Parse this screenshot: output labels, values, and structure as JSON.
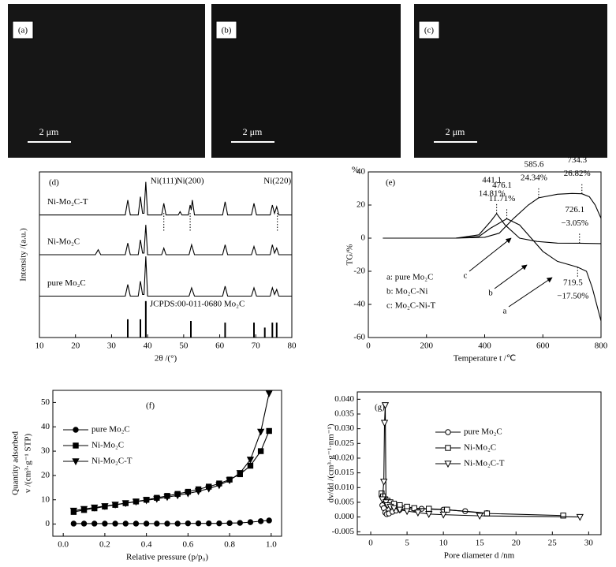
{
  "images": [
    {
      "label": "(a)",
      "scale_bar": "2 μm"
    },
    {
      "label": "(b)",
      "scale_bar": "2 μm"
    },
    {
      "label": "(c)",
      "scale_bar": "2 μm"
    }
  ],
  "chart_data": [
    {
      "type": "line",
      "panel": "(d)",
      "xlabel": "2θ /(°)",
      "ylabel": [
        "Intensity /(a.u.)"
      ],
      "xlim": [
        10,
        80
      ],
      "xticks": [
        10,
        20,
        30,
        40,
        50,
        60,
        70,
        80
      ],
      "ylim": [
        0,
        100
      ],
      "yticks": [],
      "legend": "inline",
      "series": [
        {
          "name": "Ni-Mo₂C-T",
          "color": "#000000",
          "x": [
            10,
            33.8,
            34.5,
            35.2,
            37.4,
            38,
            38.6,
            39,
            39.5,
            40,
            43.9,
            44.5,
            45.1,
            48.5,
            49,
            49.5,
            51.3,
            51.8,
            52.1,
            52.4,
            53,
            60.8,
            61.5,
            62.2,
            68.8,
            69.5,
            70.2,
            74,
            74.6,
            75.2,
            75.8,
            76.4,
            80
          ],
          "values": [
            74,
            74,
            83,
            74,
            74,
            85,
            75,
            75,
            94,
            74,
            74,
            81,
            74,
            74,
            76,
            74,
            74,
            80,
            77,
            83,
            74,
            74,
            82,
            74,
            74,
            81,
            74,
            74,
            80,
            75,
            79,
            74,
            74
          ]
        },
        {
          "name": "Ni-Mo₂C",
          "color": "#000000",
          "x": [
            10,
            25.5,
            26.3,
            27,
            33.8,
            34.5,
            35.2,
            37.4,
            38,
            38.6,
            39,
            39.5,
            40,
            43.9,
            44.5,
            45.1,
            51.5,
            52.2,
            53,
            60.8,
            61.5,
            62.2,
            68.8,
            69.5,
            70.2,
            74,
            74.6,
            75.2,
            75.8,
            76.4,
            80
          ],
          "values": [
            50,
            50,
            53,
            50,
            50,
            57,
            50,
            50,
            59,
            51,
            51,
            68,
            50,
            50,
            54,
            50,
            50,
            56,
            50,
            50,
            56,
            50,
            50,
            55,
            50,
            50,
            56,
            51,
            54,
            50,
            50
          ]
        },
        {
          "name": "pure Mo₂C",
          "color": "#000000",
          "x": [
            10,
            33.8,
            34.5,
            35.2,
            37.4,
            38,
            38.6,
            39,
            39.5,
            40,
            51.5,
            52.2,
            53,
            60.8,
            61.5,
            62.2,
            68.8,
            69.5,
            70.2,
            74,
            74.6,
            75.2,
            75.8,
            76.4,
            80
          ],
          "values": [
            25,
            25,
            32,
            25,
            25,
            34,
            26,
            26,
            49,
            25,
            25,
            30,
            25,
            25,
            31,
            25,
            25,
            30,
            25,
            25,
            30,
            26,
            29,
            25,
            25
          ]
        },
        {
          "name": "JCPDS:00-011-0680 Mo₂C",
          "color": "#000000",
          "style": "stick",
          "x": [
            34.5,
            38,
            39.5,
            52,
            61.5,
            69.5,
            72.5,
            74.6,
            75.8
          ],
          "values": [
            11,
            11,
            22,
            10,
            9,
            9,
            6,
            9,
            9
          ]
        }
      ],
      "annotations": [
        {
          "text": "Ni(111)",
          "x": 44.5
        },
        {
          "text": "Ni(200)",
          "x": 51.8
        },
        {
          "text": "Ni(220)",
          "x": 76
        }
      ]
    },
    {
      "type": "line",
      "panel": "(e)",
      "xlabel": "Temperature    t /℃",
      "ylabel": [
        "TG/%"
      ],
      "y_unit": "%",
      "xlim": [
        0,
        800
      ],
      "xticks": [
        0,
        200,
        400,
        600,
        800
      ],
      "ylim": [
        -60,
        40
      ],
      "yticks": [
        -60,
        -40,
        -20,
        0,
        20,
        40
      ],
      "legend": "text-box",
      "series": [
        {
          "name": "a: pure Mo₂C",
          "tag": "a",
          "color": "#000000",
          "x": [
            50,
            300,
            380,
            420,
            476.1,
            520,
            560,
            600,
            650,
            719.5,
            750,
            770,
            800
          ],
          "values": [
            0,
            0,
            1,
            6,
            11.71,
            8,
            0,
            -8,
            -14,
            -17.5,
            -20,
            -30,
            -50
          ]
        },
        {
          "name": "b: Mo₂C-Ni",
          "tag": "b",
          "color": "#000000",
          "x": [
            50,
            300,
            380,
            420,
            441.1,
            470,
            520,
            580,
            650,
            726.1,
            800
          ],
          "values": [
            0,
            0,
            2,
            10,
            14.81,
            8,
            0,
            -2,
            -3,
            -3.05,
            -3.3
          ]
        },
        {
          "name": "c: Mo₂C-Ni-T",
          "tag": "c",
          "color": "#000000",
          "x": [
            50,
            300,
            400,
            450,
            500,
            550,
            585.6,
            650,
            700,
            734.3,
            760,
            780,
            800
          ],
          "values": [
            0,
            0,
            0.5,
            3,
            12,
            20,
            24.34,
            26.5,
            27,
            26.82,
            25,
            20,
            12
          ]
        }
      ],
      "annotations": [
        {
          "x": 441.1,
          "y": 14.81,
          "y_label": "14.81%",
          "side": "above"
        },
        {
          "x": 476.1,
          "y": 11.71,
          "y_label": "11.71%",
          "side": "above"
        },
        {
          "x": 585.6,
          "y": 24.34,
          "y_label": "24.34%",
          "side": "above"
        },
        {
          "x": 734.3,
          "y": 26.82,
          "y_label": "26.82%",
          "side": "above"
        },
        {
          "x": 726.1,
          "y": -3.05,
          "y_label": "−3.05%",
          "side": "above"
        },
        {
          "x": 719.5,
          "y": -17.5,
          "y_label": "−17.50%",
          "side": "below"
        }
      ]
    },
    {
      "type": "line",
      "panel": "(f)",
      "xlabel": "Relative pressure    (p/p₀)",
      "ylabel": [
        "Quantity adsorbed",
        "v /(cm³·g⁻¹ STP)"
      ],
      "xlim": [
        -0.05,
        1.05
      ],
      "xticks": [
        {
          "value": 0,
          "label": "0.0"
        },
        0.2,
        0.4,
        0.6,
        0.8,
        {
          "value": 1,
          "label": "1.0"
        }
      ],
      "ylim": [
        -5,
        55
      ],
      "yticks": [
        0,
        10,
        20,
        30,
        40,
        50
      ],
      "legend": "center-left",
      "marker_fill": "filled",
      "series": [
        {
          "name": "pure Mo₂C",
          "color": "#000000",
          "marker": "circle",
          "x": [
            0.05,
            0.1,
            0.15,
            0.2,
            0.25,
            0.3,
            0.35,
            0.4,
            0.45,
            0.5,
            0.55,
            0.6,
            0.65,
            0.7,
            0.75,
            0.8,
            0.85,
            0.9,
            0.95,
            0.99
          ],
          "values": [
            0.2,
            0.2,
            0.2,
            0.2,
            0.2,
            0.2,
            0.2,
            0.2,
            0.2,
            0.2,
            0.2,
            0.3,
            0.3,
            0.3,
            0.3,
            0.4,
            0.5,
            0.8,
            1.2,
            1.5
          ]
        },
        {
          "name": "Ni-Mo₂C",
          "color": "#000000",
          "marker": "square",
          "x": [
            0.05,
            0.1,
            0.15,
            0.2,
            0.25,
            0.3,
            0.35,
            0.4,
            0.45,
            0.5,
            0.55,
            0.6,
            0.65,
            0.7,
            0.75,
            0.8,
            0.85,
            0.9,
            0.95,
            0.99
          ],
          "values": [
            5.0,
            5.8,
            6.5,
            7.2,
            7.9,
            8.6,
            9.3,
            10.0,
            10.8,
            11.6,
            12.4,
            13.3,
            14.3,
            15.4,
            16.7,
            18.3,
            20.5,
            24.0,
            30.0,
            38.3
          ]
        },
        {
          "name": "Ni-Mo₂C-T",
          "color": "#000000",
          "marker": "triangle-down",
          "x": [
            0.05,
            0.1,
            0.15,
            0.2,
            0.25,
            0.3,
            0.35,
            0.4,
            0.45,
            0.5,
            0.55,
            0.6,
            0.65,
            0.7,
            0.75,
            0.8,
            0.85,
            0.9,
            0.95,
            0.99
          ],
          "values": [
            5.5,
            6.2,
            6.8,
            7.4,
            8.0,
            8.6,
            9.2,
            9.8,
            10.4,
            11.1,
            11.8,
            12.6,
            13.5,
            14.6,
            16.0,
            18.0,
            21.0,
            26.5,
            38.0,
            53.8
          ]
        }
      ]
    },
    {
      "type": "line",
      "panel": "(g)",
      "xlabel": "Pore diameter    d /nm",
      "ylabel": [
        "dv/dd /(cm³·g⁻¹·nm⁻¹)"
      ],
      "xlim": [
        -1.85,
        31.7
      ],
      "xticks": [
        0,
        5,
        10,
        15,
        20,
        25,
        30
      ],
      "ylim": [
        -0.006,
        0.0425
      ],
      "yticks": [
        -0.005,
        {
          "value": 0,
          "label": "0.000"
        },
        0.005,
        {
          "value": 0.01,
          "label": "0.010"
        },
        0.015,
        {
          "value": 0.02,
          "label": "0.020"
        },
        0.025,
        {
          "value": 0.03,
          "label": "0.030"
        },
        0.035,
        {
          "value": 0.04,
          "label": "0.040"
        }
      ],
      "legend": "center-left",
      "marker_fill": "open",
      "series": [
        {
          "name": "pure Mo₂C",
          "color": "#000000",
          "marker": "circle",
          "x": [
            1.6,
            1.8,
            2.0,
            2.2,
            2.5,
            3,
            3.5,
            4,
            5,
            6,
            7,
            8,
            10,
            13,
            16
          ],
          "values": [
            0.004,
            0.003,
            0.0015,
            0.001,
            0.0012,
            0.0018,
            0.0022,
            0.0025,
            0.0027,
            0.0028,
            0.0028,
            0.0027,
            0.0025,
            0.002,
            0.0013
          ]
        },
        {
          "name": "Ni-Mo₂C",
          "color": "#000000",
          "marker": "square",
          "x": [
            1.5,
            1.7,
            2.0,
            2.3,
            2.7,
            3.2,
            4,
            5,
            6,
            8,
            10.5,
            16,
            26.5
          ],
          "values": [
            0.008,
            0.007,
            0.006,
            0.0055,
            0.005,
            0.0045,
            0.004,
            0.0035,
            0.003,
            0.0028,
            0.0025,
            0.0012,
            0.0005
          ]
        },
        {
          "name": "Ni-Mo₂C-T",
          "color": "#000000",
          "marker": "triangle-down",
          "x": [
            1.6,
            1.8,
            1.9,
            2.0,
            2.1,
            2.3,
            2.7,
            3.2,
            4,
            5,
            6.5,
            8,
            10,
            15,
            28.8
          ],
          "values": [
            0.006,
            0.012,
            0.032,
            0.038,
            0.005,
            0.004,
            0.0035,
            0.003,
            0.0025,
            0.002,
            0.0015,
            0.001,
            0.0008,
            0.0004,
            0
          ]
        }
      ]
    }
  ]
}
